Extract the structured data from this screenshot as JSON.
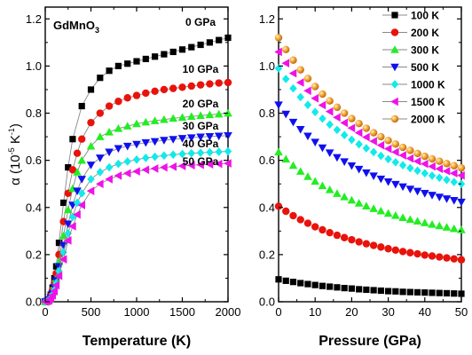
{
  "chart_data": [
    {
      "type": "line",
      "compound": {
        "base": "GdMnO",
        "sub": "3"
      },
      "xlabel": "Temperature (K)",
      "ylabel": {
        "pre": "α (10",
        "exp1": "-5",
        "mid": " K",
        "exp2": "-1",
        "post": ")"
      },
      "xlim": [
        0,
        2000
      ],
      "ylim": [
        0,
        1.25
      ],
      "xticks": [
        "0",
        "500",
        "1000",
        "1500",
        "2000"
      ],
      "yticks": [
        "0.0",
        "0.2",
        "0.4",
        "0.6",
        "0.8",
        "1.0",
        "1.2"
      ],
      "series": [
        {
          "name": "0 GPa",
          "color": "#000000",
          "marker": "square",
          "x": [
            0,
            20,
            40,
            60,
            80,
            100,
            120,
            150,
            200,
            250,
            300,
            400,
            500,
            600,
            700,
            800,
            900,
            1000,
            1100,
            1200,
            1300,
            1400,
            1500,
            1600,
            1700,
            1800,
            1900,
            2000
          ],
          "values": [
            0,
            0.002,
            0.01,
            0.03,
            0.06,
            0.1,
            0.15,
            0.25,
            0.42,
            0.57,
            0.69,
            0.83,
            0.9,
            0.95,
            0.98,
            1.0,
            1.01,
            1.02,
            1.03,
            1.04,
            1.05,
            1.06,
            1.07,
            1.08,
            1.09,
            1.1,
            1.11,
            1.12
          ]
        },
        {
          "name": "10 GPa",
          "color": "#e8130b",
          "marker": "circle",
          "x": [
            0,
            20,
            40,
            60,
            80,
            100,
            120,
            150,
            200,
            250,
            300,
            350,
            400,
            500,
            600,
            700,
            800,
            900,
            1000,
            1100,
            1200,
            1300,
            1400,
            1500,
            1600,
            1700,
            1800,
            1900,
            2000
          ],
          "values": [
            0,
            0.002,
            0.01,
            0.025,
            0.05,
            0.08,
            0.12,
            0.2,
            0.34,
            0.46,
            0.56,
            0.63,
            0.69,
            0.76,
            0.8,
            0.83,
            0.85,
            0.865,
            0.875,
            0.885,
            0.893,
            0.9,
            0.905,
            0.91,
            0.915,
            0.92,
            0.924,
            0.928,
            0.93
          ]
        },
        {
          "name": "20 GPa",
          "color": "#22ee22",
          "marker": "triangle-up",
          "x": [
            0,
            20,
            40,
            60,
            80,
            100,
            120,
            150,
            200,
            250,
            300,
            350,
            400,
            500,
            600,
            700,
            800,
            900,
            1000,
            1100,
            1200,
            1300,
            1400,
            1500,
            1600,
            1700,
            1800,
            1900,
            2000
          ],
          "values": [
            0,
            0.002,
            0.008,
            0.02,
            0.04,
            0.07,
            0.1,
            0.17,
            0.28,
            0.39,
            0.48,
            0.55,
            0.6,
            0.66,
            0.7,
            0.72,
            0.735,
            0.745,
            0.755,
            0.762,
            0.768,
            0.773,
            0.778,
            0.782,
            0.786,
            0.79,
            0.793,
            0.796,
            0.8
          ]
        },
        {
          "name": "30 GPa",
          "color": "#1010ee",
          "marker": "triangle-down",
          "x": [
            0,
            20,
            40,
            60,
            80,
            100,
            120,
            150,
            200,
            250,
            300,
            350,
            400,
            500,
            600,
            700,
            800,
            900,
            1000,
            1100,
            1200,
            1300,
            1400,
            1500,
            1600,
            1700,
            1800,
            1900,
            2000
          ],
          "values": [
            0,
            0.002,
            0.007,
            0.018,
            0.035,
            0.06,
            0.09,
            0.15,
            0.24,
            0.33,
            0.41,
            0.47,
            0.52,
            0.58,
            0.61,
            0.635,
            0.65,
            0.66,
            0.668,
            0.675,
            0.68,
            0.685,
            0.689,
            0.693,
            0.696,
            0.699,
            0.701,
            0.703,
            0.705
          ]
        },
        {
          "name": "40 GPa",
          "color": "#11eaea",
          "marker": "diamond",
          "x": [
            0,
            20,
            40,
            60,
            80,
            100,
            120,
            150,
            200,
            250,
            300,
            350,
            400,
            500,
            600,
            700,
            800,
            900,
            1000,
            1100,
            1200,
            1300,
            1400,
            1500,
            1600,
            1700,
            1800,
            1900,
            2000
          ],
          "values": [
            0,
            0.002,
            0.006,
            0.016,
            0.03,
            0.05,
            0.08,
            0.13,
            0.21,
            0.29,
            0.36,
            0.42,
            0.46,
            0.52,
            0.55,
            0.57,
            0.585,
            0.595,
            0.603,
            0.61,
            0.615,
            0.62,
            0.624,
            0.627,
            0.63,
            0.632,
            0.634,
            0.636,
            0.638
          ]
        },
        {
          "name": "50 GPa",
          "color": "#f011e8",
          "marker": "triangle-left",
          "x": [
            0,
            20,
            40,
            60,
            80,
            100,
            120,
            150,
            200,
            250,
            300,
            350,
            400,
            500,
            600,
            700,
            800,
            900,
            1000,
            1100,
            1200,
            1300,
            1400,
            1500,
            1600,
            1700,
            1800,
            1900,
            2000
          ],
          "values": [
            0,
            0.002,
            0.005,
            0.014,
            0.027,
            0.045,
            0.07,
            0.11,
            0.18,
            0.26,
            0.32,
            0.37,
            0.41,
            0.47,
            0.5,
            0.52,
            0.535,
            0.545,
            0.553,
            0.56,
            0.565,
            0.57,
            0.573,
            0.576,
            0.579,
            0.581,
            0.583,
            0.585,
            0.587
          ]
        }
      ]
    },
    {
      "type": "scatter",
      "xlabel": "Pressure (GPa)",
      "xlim": [
        0,
        50
      ],
      "ylim": [
        0,
        1.25
      ],
      "xticks": [
        "0",
        "10",
        "20",
        "30",
        "40",
        "50"
      ],
      "yticks": [
        "0.0",
        "0.2",
        "0.4",
        "0.6",
        "0.8",
        "1.0",
        "1.2"
      ],
      "legend_position": "top-right",
      "x": [
        0,
        2,
        4,
        6,
        8,
        10,
        12,
        14,
        16,
        18,
        20,
        22,
        24,
        26,
        28,
        30,
        32,
        34,
        36,
        38,
        40,
        42,
        44,
        46,
        48,
        50
      ],
      "series": [
        {
          "name": "100 K",
          "color": "#000000",
          "marker": "square",
          "values": [
            0.095,
            0.089,
            0.084,
            0.079,
            0.075,
            0.071,
            0.067,
            0.064,
            0.061,
            0.058,
            0.056,
            0.053,
            0.051,
            0.049,
            0.047,
            0.045,
            0.044,
            0.042,
            0.041,
            0.04,
            0.039,
            0.038,
            0.037,
            0.036,
            0.035,
            0.034
          ]
        },
        {
          "name": "200 K",
          "color": "#e8130b",
          "marker": "circle",
          "values": [
            0.405,
            0.384,
            0.365,
            0.348,
            0.333,
            0.318,
            0.305,
            0.293,
            0.282,
            0.272,
            0.263,
            0.254,
            0.246,
            0.239,
            0.232,
            0.225,
            0.219,
            0.213,
            0.208,
            0.203,
            0.198,
            0.194,
            0.19,
            0.186,
            0.182,
            0.178
          ]
        },
        {
          "name": "300 K",
          "color": "#22ee22",
          "marker": "triangle-up",
          "values": [
            0.635,
            0.605,
            0.578,
            0.553,
            0.531,
            0.511,
            0.492,
            0.475,
            0.459,
            0.445,
            0.431,
            0.418,
            0.406,
            0.395,
            0.385,
            0.375,
            0.366,
            0.357,
            0.349,
            0.342,
            0.335,
            0.328,
            0.322,
            0.316,
            0.31,
            0.305
          ]
        },
        {
          "name": "500 K",
          "color": "#1010ee",
          "marker": "triangle-down",
          "values": [
            0.835,
            0.796,
            0.762,
            0.731,
            0.703,
            0.677,
            0.653,
            0.632,
            0.612,
            0.594,
            0.577,
            0.562,
            0.547,
            0.534,
            0.521,
            0.509,
            0.498,
            0.488,
            0.478,
            0.469,
            0.46,
            0.452,
            0.444,
            0.437,
            0.43,
            0.423
          ]
        },
        {
          "name": "1000 K",
          "color": "#11eaea",
          "marker": "diamond",
          "values": [
            0.99,
            0.945,
            0.905,
            0.868,
            0.835,
            0.805,
            0.777,
            0.752,
            0.729,
            0.707,
            0.687,
            0.668,
            0.651,
            0.635,
            0.619,
            0.605,
            0.592,
            0.579,
            0.567,
            0.556,
            0.545,
            0.535,
            0.526,
            0.517,
            0.508,
            0.5
          ]
        },
        {
          "name": "1500 K",
          "color": "#f011e8",
          "marker": "triangle-left",
          "values": [
            1.06,
            1.012,
            0.969,
            0.93,
            0.895,
            0.863,
            0.834,
            0.807,
            0.782,
            0.759,
            0.737,
            0.717,
            0.698,
            0.681,
            0.664,
            0.649,
            0.635,
            0.621,
            0.608,
            0.596,
            0.585,
            0.574,
            0.564,
            0.554,
            0.545,
            0.536
          ]
        },
        {
          "name": "2000 K",
          "color": "#f0a030",
          "marker": "sphere",
          "values": [
            1.12,
            1.07,
            1.025,
            0.984,
            0.947,
            0.913,
            0.881,
            0.852,
            0.825,
            0.8,
            0.777,
            0.756,
            0.736,
            0.717,
            0.7,
            0.684,
            0.669,
            0.655,
            0.642,
            0.629,
            0.617,
            0.606,
            0.596,
            0.586,
            0.577,
            0.568
          ]
        }
      ]
    }
  ]
}
